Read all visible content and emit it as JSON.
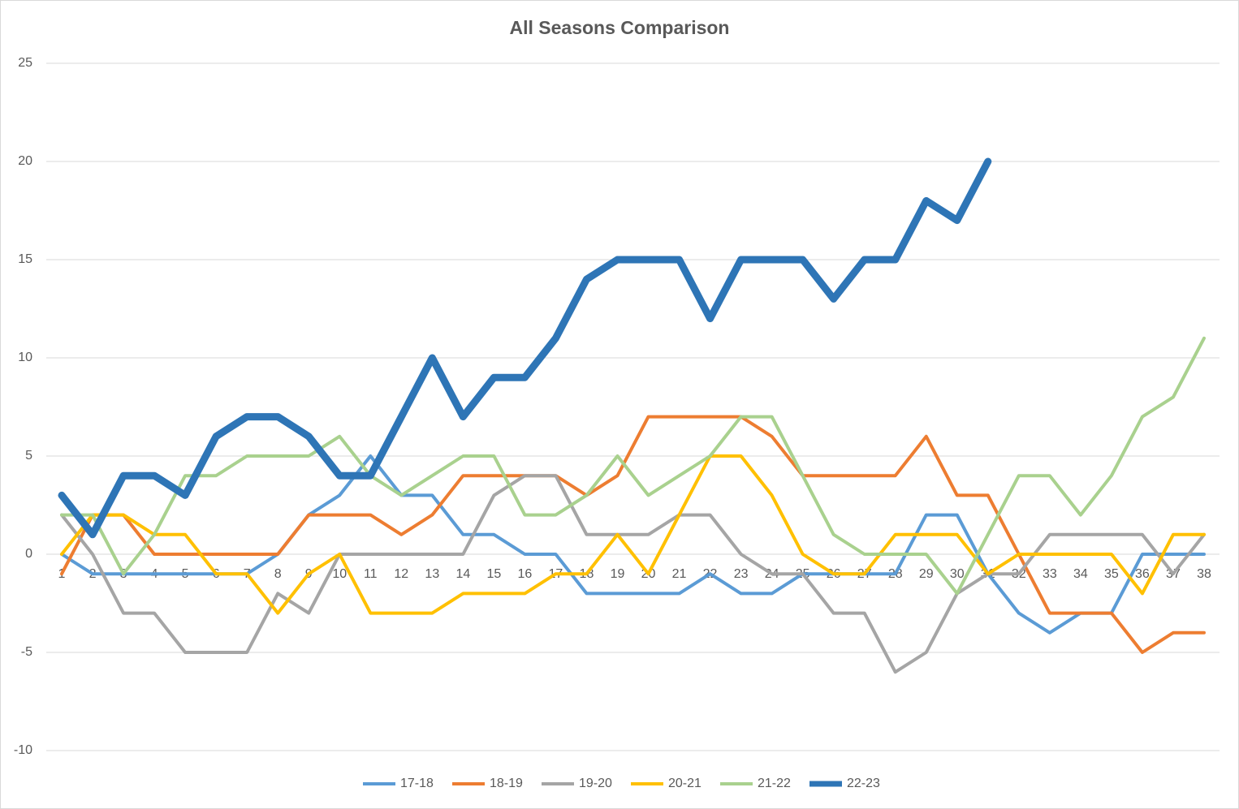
{
  "chart_data": {
    "type": "line",
    "title": "All Seasons Comparison",
    "categories": [
      "1",
      "2",
      "3",
      "4",
      "5",
      "6",
      "7",
      "8",
      "9",
      "10",
      "11",
      "12",
      "13",
      "14",
      "15",
      "16",
      "17",
      "18",
      "19",
      "20",
      "21",
      "22",
      "23",
      "24",
      "25",
      "26",
      "27",
      "28",
      "29",
      "30",
      "31",
      "32",
      "33",
      "34",
      "35",
      "36",
      "37",
      "38"
    ],
    "ylim": [
      -10,
      25
    ],
    "yticks": [
      -10,
      -5,
      0,
      5,
      10,
      15,
      20,
      25
    ],
    "grid": true,
    "legend": "bottom",
    "series": [
      {
        "name": "17-18",
        "color": "#5b9bd5",
        "values": [
          0,
          -1,
          -1,
          -1,
          -1,
          -1,
          -1,
          0,
          2,
          3,
          5,
          3,
          3,
          1,
          1,
          0,
          0,
          -2,
          -2,
          -2,
          -2,
          -1,
          -2,
          -2,
          -1,
          -1,
          -1,
          -1,
          2,
          2,
          -1,
          -3,
          -4,
          -3,
          -3,
          0,
          0,
          0
        ]
      },
      {
        "name": "18-19",
        "color": "#ed7d31",
        "values": [
          -1,
          2,
          2,
          0,
          0,
          0,
          0,
          0,
          2,
          2,
          2,
          1,
          2,
          4,
          4,
          4,
          4,
          3,
          4,
          7,
          7,
          7,
          7,
          6,
          4,
          4,
          4,
          4,
          6,
          3,
          3,
          0,
          -3,
          -3,
          -3,
          -5,
          -4,
          -4
        ]
      },
      {
        "name": "19-20",
        "color": "#a5a5a5",
        "values": [
          2,
          0,
          -3,
          -3,
          -5,
          -5,
          -5,
          -2,
          -3,
          0,
          0,
          0,
          0,
          0,
          3,
          4,
          4,
          1,
          1,
          1,
          2,
          2,
          0,
          -1,
          -1,
          -3,
          -3,
          -6,
          -5,
          -2,
          -1,
          -1,
          1,
          1,
          1,
          1,
          -1,
          1
        ]
      },
      {
        "name": "20-21",
        "color": "#ffc000",
        "values": [
          0,
          2,
          2,
          1,
          1,
          -1,
          -1,
          -3,
          -1,
          0,
          -3,
          -3,
          -3,
          -2,
          -2,
          -2,
          -1,
          -1,
          1,
          -1,
          2,
          5,
          5,
          3,
          0,
          -1,
          -1,
          1,
          1,
          1,
          -1,
          0,
          0,
          0,
          0,
          -2,
          1,
          1
        ]
      },
      {
        "name": "21-22",
        "color": "#a9d18e",
        "values": [
          2,
          2,
          -1,
          1,
          4,
          4,
          5,
          5,
          5,
          6,
          4,
          3,
          4,
          5,
          5,
          2,
          2,
          3,
          5,
          3,
          4,
          5,
          7,
          7,
          4,
          1,
          0,
          0,
          0,
          -2,
          1,
          4,
          4,
          2,
          4,
          7,
          8,
          11
        ]
      },
      {
        "name": "22-23",
        "color": "#2e75b6",
        "values": [
          3,
          1,
          4,
          4,
          3,
          6,
          7,
          7,
          6,
          4,
          4,
          7,
          10,
          7,
          9,
          9,
          11,
          14,
          15,
          15,
          15,
          12,
          15,
          15,
          15,
          13,
          15,
          15,
          18,
          17,
          20,
          null,
          null,
          null,
          null,
          null,
          null,
          null
        ]
      }
    ]
  }
}
